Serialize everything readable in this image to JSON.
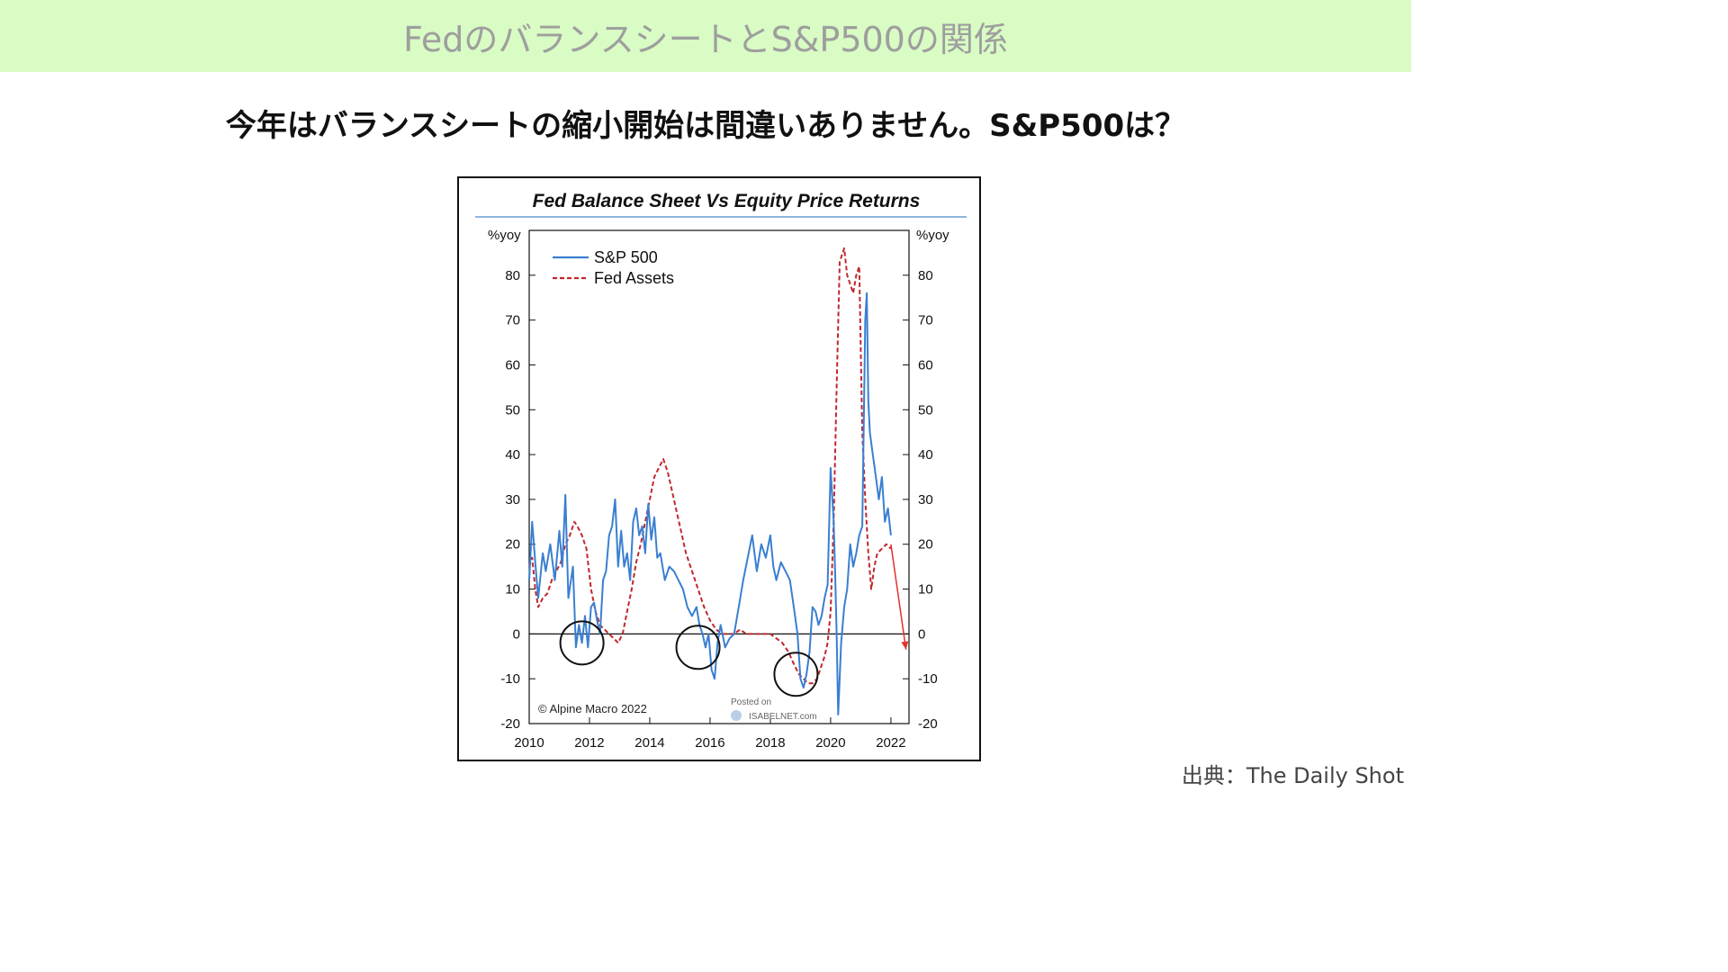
{
  "banner": {
    "title": "FedのバランスシートとS&P500の関係"
  },
  "subtitle": "今年はバランスシートの縮小開始は間違いありません。S&P500は？",
  "source": "出典：The Daily Shot",
  "chart_data": {
    "type": "line",
    "title": "Fed Balance Sheet Vs Equity Price Returns",
    "y_unit_left": "%yoy",
    "y_unit_right": "%yoy",
    "ylim": [
      -20,
      90
    ],
    "yticks": [
      -20,
      -10,
      0,
      10,
      20,
      30,
      40,
      50,
      60,
      70,
      80
    ],
    "xlim": [
      2010,
      2022.6
    ],
    "xticks": [
      2010,
      2012,
      2014,
      2016,
      2018,
      2020,
      2022
    ],
    "legend_position": "top-left",
    "copyright": "© Alpine Macro 2022",
    "watermark": [
      "Posted on",
      "ISABELNET.com"
    ],
    "colors": {
      "sp500": "#3a7fd1",
      "fed": "#c0282d",
      "arrow": "#e2322a"
    },
    "series": [
      {
        "name": "S&P 500",
        "style": "solid",
        "x": [
          2010.0,
          2010.1,
          2010.2,
          2010.3,
          2010.45,
          2010.55,
          2010.7,
          2010.85,
          2011.0,
          2011.1,
          2011.2,
          2011.3,
          2011.45,
          2011.55,
          2011.65,
          2011.75,
          2011.85,
          2011.95,
          2012.05,
          2012.15,
          2012.25,
          2012.35,
          2012.45,
          2012.55,
          2012.65,
          2012.75,
          2012.85,
          2012.95,
          2013.05,
          2013.15,
          2013.25,
          2013.35,
          2013.45,
          2013.55,
          2013.65,
          2013.75,
          2013.85,
          2013.95,
          2014.05,
          2014.15,
          2014.25,
          2014.35,
          2014.5,
          2014.65,
          2014.8,
          2014.95,
          2015.1,
          2015.25,
          2015.4,
          2015.55,
          2015.65,
          2015.75,
          2015.85,
          2015.95,
          2016.05,
          2016.15,
          2016.25,
          2016.35,
          2016.5,
          2016.65,
          2016.8,
          2016.95,
          2017.1,
          2017.25,
          2017.4,
          2017.55,
          2017.7,
          2017.85,
          2018.0,
          2018.1,
          2018.2,
          2018.35,
          2018.5,
          2018.65,
          2018.8,
          2018.9,
          2019.0,
          2019.1,
          2019.2,
          2019.3,
          2019.4,
          2019.5,
          2019.6,
          2019.7,
          2019.8,
          2019.9,
          2020.0,
          2020.1,
          2020.15,
          2020.2,
          2020.25,
          2020.35,
          2020.45,
          2020.55,
          2020.65,
          2020.75,
          2020.85,
          2020.95,
          2021.05,
          2021.15,
          2021.2,
          2021.25,
          2021.3,
          2021.4,
          2021.5,
          2021.6,
          2021.7,
          2021.8,
          2021.9,
          2022.0
        ],
        "values": [
          12,
          25,
          16,
          8,
          18,
          14,
          20,
          12,
          23,
          15,
          31,
          8,
          15,
          -3,
          2,
          -2,
          4,
          -3,
          6,
          7,
          3,
          0,
          12,
          14,
          22,
          24,
          30,
          15,
          23,
          15,
          18,
          12,
          25,
          28,
          22,
          24,
          18,
          29,
          21,
          26,
          17,
          18,
          12,
          15,
          14,
          12,
          10,
          6,
          4,
          6,
          2,
          0,
          -3,
          0,
          -8,
          -10,
          -2,
          2,
          -3,
          -1,
          0,
          6,
          12,
          17,
          22,
          14,
          20,
          17,
          22,
          15,
          12,
          16,
          14,
          12,
          5,
          0,
          -10,
          -12,
          -9,
          -4,
          6,
          5,
          2,
          4,
          8,
          11,
          37,
          25,
          14,
          0,
          -18,
          -2,
          6,
          10,
          20,
          15,
          18,
          22,
          24,
          70,
          76,
          52,
          45,
          40,
          35,
          30,
          35,
          25,
          28,
          22
        ]
      },
      {
        "name": "Fed Assets",
        "style": "dashed",
        "x": [
          2010.0,
          2010.1,
          2010.2,
          2010.3,
          2010.45,
          2010.6,
          2010.75,
          2010.9,
          2011.05,
          2011.2,
          2011.35,
          2011.5,
          2011.6,
          2011.75,
          2011.9,
          2012.05,
          2012.2,
          2012.35,
          2012.5,
          2012.65,
          2012.8,
          2012.95,
          2013.1,
          2013.25,
          2013.4,
          2013.55,
          2013.7,
          2013.85,
          2014.0,
          2014.15,
          2014.3,
          2014.45,
          2014.6,
          2014.8,
          2015.0,
          2015.2,
          2015.4,
          2015.6,
          2015.8,
          2016.0,
          2016.2,
          2016.4,
          2016.6,
          2016.8,
          2017.0,
          2017.2,
          2017.4,
          2017.6,
          2017.8,
          2018.0,
          2018.2,
          2018.4,
          2018.6,
          2018.8,
          2018.95,
          2019.1,
          2019.25,
          2019.4,
          2019.55,
          2019.7,
          2019.8,
          2019.9,
          2020.0,
          2020.1,
          2020.2,
          2020.3,
          2020.45,
          2020.55,
          2020.65,
          2020.75,
          2020.85,
          2020.95,
          2021.05,
          2021.15,
          2021.25,
          2021.35,
          2021.45,
          2021.55,
          2021.7,
          2021.85,
          2022.0
        ],
        "values": [
          15,
          17,
          10,
          6,
          8,
          9,
          12,
          14,
          16,
          20,
          22,
          25,
          24,
          22,
          19,
          10,
          5,
          2,
          1,
          0,
          -1,
          -2,
          0,
          5,
          10,
          16,
          20,
          25,
          30,
          35,
          37,
          39,
          36,
          30,
          24,
          18,
          14,
          10,
          6,
          3,
          1,
          0,
          0,
          0,
          1,
          0,
          0,
          0,
          0,
          0,
          -1,
          -2,
          -4,
          -7,
          -9,
          -10,
          -11,
          -11,
          -10,
          -7,
          -5,
          -2,
          5,
          25,
          55,
          83,
          86,
          80,
          78,
          76,
          80,
          82,
          45,
          30,
          18,
          10,
          15,
          18,
          19,
          20,
          19
        ]
      }
    ],
    "annotation_circles": [
      {
        "x": 2011.75,
        "y": -2
      },
      {
        "x": 2015.6,
        "y": -3
      },
      {
        "x": 2018.85,
        "y": -9
      }
    ],
    "projection_arrow": {
      "from": [
        2022.0,
        20
      ],
      "to": [
        2022.5,
        -3.5
      ]
    }
  }
}
